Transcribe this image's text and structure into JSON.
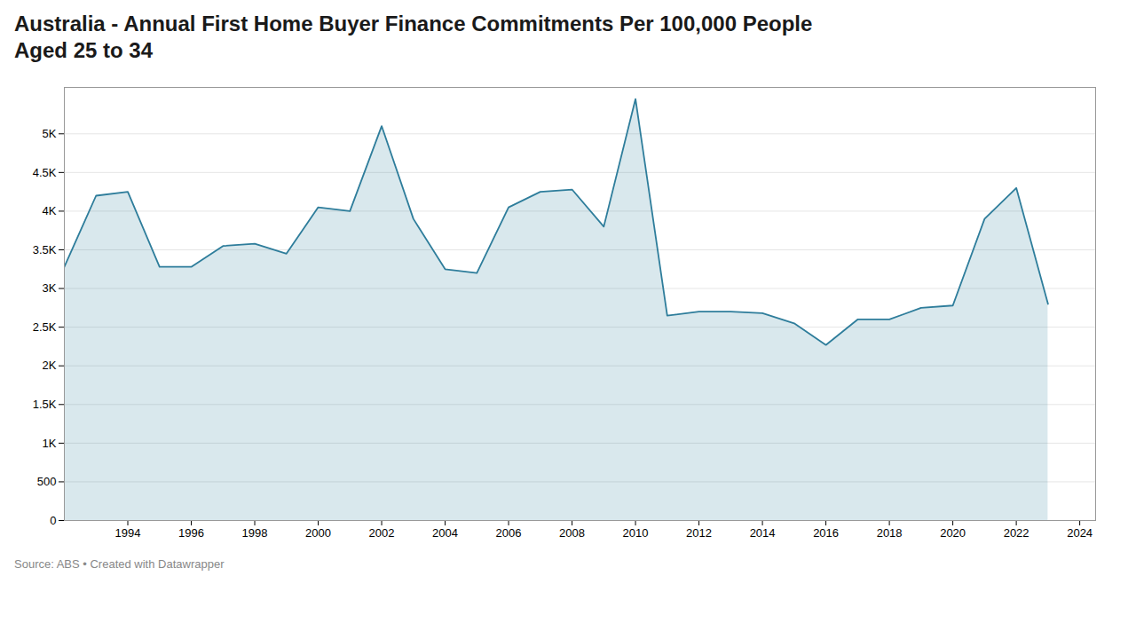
{
  "chart_data": {
    "type": "area",
    "title": "Australia - Annual First Home Buyer Finance Commitments Per 100,000 People\nAged 25 to 34",
    "source": "Source: ABS • Created with Datawrapper",
    "x": [
      1992,
      1993,
      1994,
      1995,
      1996,
      1997,
      1998,
      1999,
      2000,
      2001,
      2002,
      2003,
      2004,
      2005,
      2006,
      2007,
      2008,
      2009,
      2010,
      2011,
      2012,
      2013,
      2014,
      2015,
      2016,
      2017,
      2018,
      2019,
      2020,
      2021,
      2022,
      2023
    ],
    "values": [
      3280,
      4200,
      4250,
      3280,
      3280,
      3550,
      3580,
      3450,
      4050,
      4000,
      5100,
      3900,
      3250,
      3200,
      4050,
      4250,
      4280,
      3800,
      5450,
      2650,
      2700,
      2700,
      2680,
      2550,
      2270,
      2600,
      2600,
      2750,
      2780,
      3900,
      4300,
      2800
    ],
    "color": "#2e7d9b",
    "xlim": [
      1992,
      2024.5
    ],
    "xticks": [
      1994,
      1996,
      1998,
      2000,
      2002,
      2004,
      2006,
      2008,
      2010,
      2012,
      2014,
      2016,
      2018,
      2020,
      2022,
      2024
    ],
    "ylim": [
      0,
      5600
    ],
    "yticks": [
      0,
      500,
      {
        "value": 1000,
        "label": "1K"
      },
      {
        "value": 1500,
        "label": "1.5K"
      },
      {
        "value": 2000,
        "label": "2K"
      },
      {
        "value": 2500,
        "label": "2.5K"
      },
      {
        "value": 3000,
        "label": "3K"
      },
      {
        "value": 3500,
        "label": "3.5K"
      },
      {
        "value": 4000,
        "label": "4K"
      },
      {
        "value": 4500,
        "label": "4.5K"
      },
      {
        "value": 5000,
        "label": "5K"
      }
    ],
    "grid": true
  }
}
